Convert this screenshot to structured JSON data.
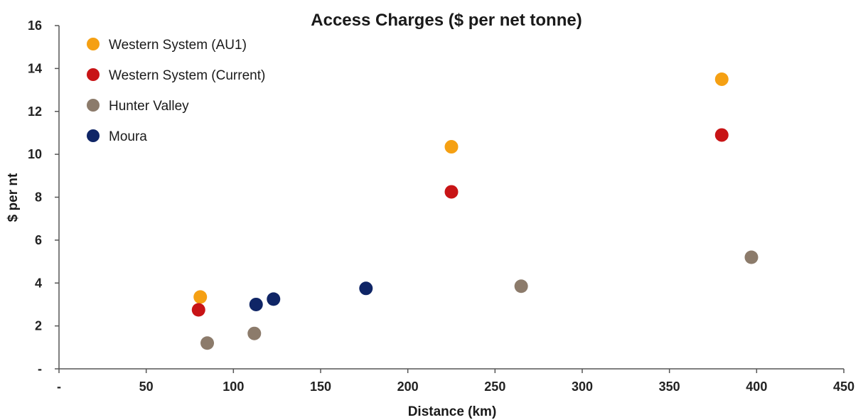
{
  "chart_data": {
    "type": "scatter",
    "title": "Access Charges ($ per net tonne)",
    "xlabel": "Distance (km)",
    "ylabel": "$ per nt",
    "xlim": [
      0,
      450
    ],
    "ylim": [
      0,
      16
    ],
    "x_ticks": [
      0,
      50,
      100,
      150,
      200,
      250,
      300,
      350,
      400,
      450
    ],
    "x_tick_labels": [
      "-",
      "50",
      "100",
      "150",
      "200",
      "250",
      "300",
      "350",
      "400",
      "450"
    ],
    "y_ticks": [
      0,
      2,
      4,
      6,
      8,
      10,
      12,
      14,
      16
    ],
    "y_tick_labels": [
      "-",
      "2",
      "4",
      "6",
      "8",
      "10",
      "12",
      "14",
      "16"
    ],
    "grid": false,
    "legend_position": "top-left",
    "series": [
      {
        "name": "Western System (AU1)",
        "color": "#f5a013",
        "points": [
          [
            81,
            3.35
          ],
          [
            225,
            10.35
          ],
          [
            380,
            13.5
          ]
        ]
      },
      {
        "name": "Western System (Current)",
        "color": "#c81416",
        "points": [
          [
            80,
            2.75
          ],
          [
            225,
            8.25
          ],
          [
            380,
            10.9
          ]
        ]
      },
      {
        "name": "Hunter Valley",
        "color": "#8c7b6b",
        "points": [
          [
            85,
            1.2
          ],
          [
            112,
            1.65
          ],
          [
            265,
            3.85
          ],
          [
            397,
            5.2
          ]
        ]
      },
      {
        "name": "Moura",
        "color": "#0f2566",
        "points": [
          [
            113,
            3.0
          ],
          [
            123,
            3.25
          ],
          [
            176,
            3.75
          ]
        ]
      }
    ]
  }
}
